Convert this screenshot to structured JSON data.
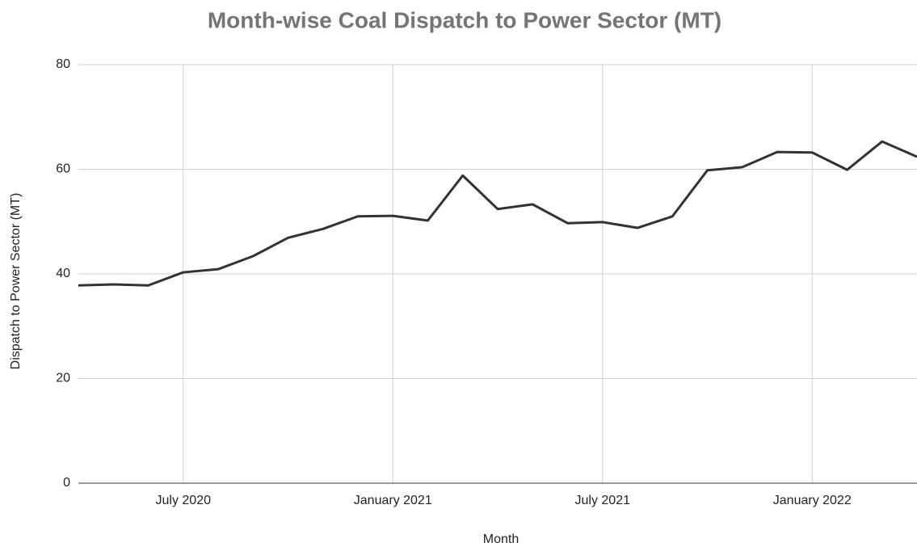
{
  "chart_data": {
    "type": "line",
    "title": "Month-wise Coal Dispatch to Power Sector (MT)",
    "x_label": "Month",
    "y_label": "Dispatch to Power Sector (MT)",
    "x": [
      "2020-04",
      "2020-05",
      "2020-06",
      "2020-07",
      "2020-08",
      "2020-09",
      "2020-10",
      "2020-11",
      "2020-12",
      "2021-01",
      "2021-02",
      "2021-03",
      "2021-04",
      "2021-05",
      "2021-06",
      "2021-07",
      "2021-08",
      "2021-09",
      "2021-10",
      "2021-11",
      "2021-12",
      "2022-01",
      "2022-02",
      "2022-03",
      "2022-04"
    ],
    "series": [
      {
        "name": "Dispatch to Power Sector (MT)",
        "color": "#333333",
        "values": [
          37.8,
          38.0,
          37.8,
          40.3,
          40.9,
          43.4,
          46.9,
          48.6,
          51.0,
          51.1,
          50.2,
          58.8,
          52.4,
          53.3,
          49.7,
          49.9,
          48.8,
          51.0,
          59.8,
          60.4,
          63.3,
          63.2,
          59.9,
          65.3,
          62.4
        ]
      }
    ],
    "xlim": [
      "2020-04",
      "2022-04"
    ],
    "xticks": [
      {
        "value": "2020-07",
        "label": "July 2020"
      },
      {
        "value": "2021-01",
        "label": "January 2021"
      },
      {
        "value": "2021-07",
        "label": "July 2021"
      },
      {
        "value": "2022-01",
        "label": "January 2022"
      }
    ],
    "ylim": [
      0,
      80
    ],
    "yticks": [
      0,
      20,
      40,
      60,
      80
    ],
    "grid": true
  }
}
